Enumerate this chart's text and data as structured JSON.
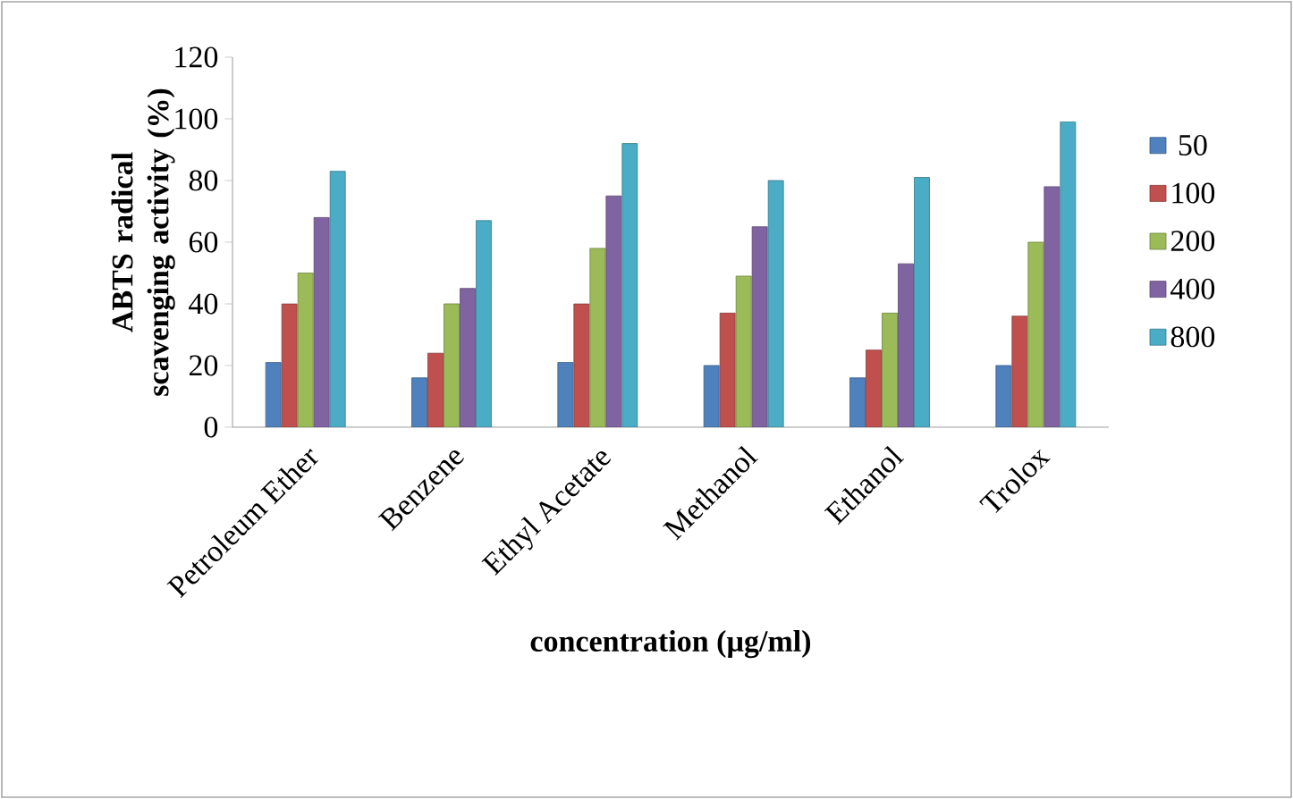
{
  "chart_data": {
    "type": "bar",
    "xlabel": "concentration (µg/ml)",
    "ylabel": "ABTS radical scavenging activity (%)",
    "categories": [
      "Petroleum Ether",
      "Benzene",
      "Ethyl Acetate",
      "Methanol",
      "Ethanol",
      "Trolox"
    ],
    "series": [
      {
        "name": "50",
        "color": "#4f81bd",
        "values": [
          21,
          16,
          21,
          20,
          16,
          20
        ]
      },
      {
        "name": "100",
        "color": "#c0504d",
        "values": [
          40,
          24,
          40,
          37,
          25,
          36
        ]
      },
      {
        "name": "200",
        "color": "#9bbb59",
        "values": [
          50,
          40,
          58,
          49,
          37,
          60
        ]
      },
      {
        "name": "400",
        "color": "#8064a2",
        "values": [
          68,
          45,
          75,
          65,
          53,
          78
        ]
      },
      {
        "name": "800",
        "color": "#4bacc6",
        "values": [
          83,
          67,
          92,
          80,
          81,
          99
        ]
      }
    ],
    "ylim": [
      0,
      120
    ],
    "yticks": [
      0,
      20,
      40,
      60,
      80,
      100,
      120
    ],
    "grid": false,
    "legend": "right"
  }
}
